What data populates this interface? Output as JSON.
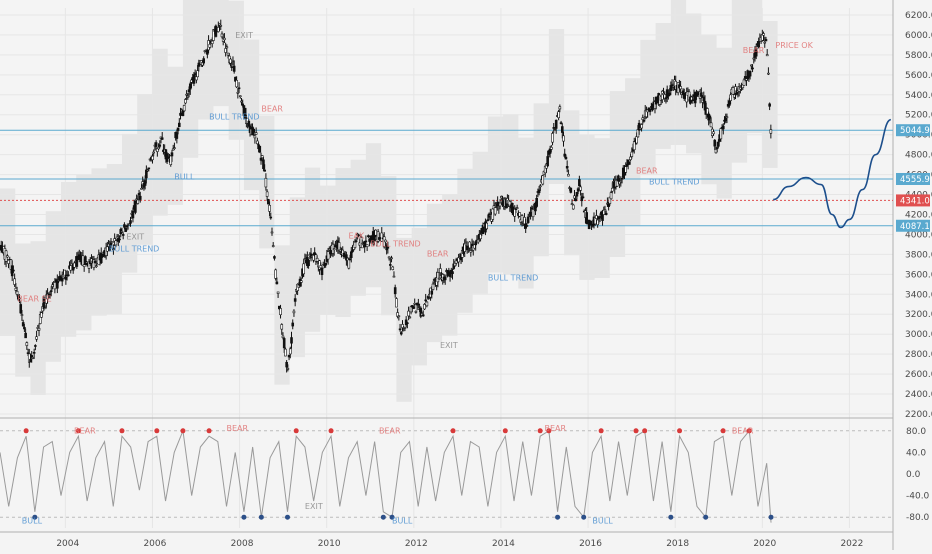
{
  "chart_data": [
    {
      "type": "candlestick",
      "price_axis": {
        "ticks": [
          "2200.0",
          "2400.0",
          "2600.0",
          "2800.0",
          "3000.0",
          "3200.0",
          "3400.0",
          "3600.0",
          "3800.0",
          "4000.0",
          "4200.0",
          "4400.0",
          "4600.0",
          "4800.0",
          "5000.0",
          "5200.0",
          "5400.0",
          "5600.0",
          "5800.0",
          "6000.0",
          "6200.0"
        ],
        "ylim": [
          2180,
          6270
        ]
      },
      "x_axis": {
        "ticks": [
          "2004",
          "2006",
          "2008",
          "2010",
          "2012",
          "2014",
          "2016",
          "2018",
          "2020",
          "2022"
        ],
        "xlim": [
          2002.5,
          2023.0
        ]
      },
      "price_lines": [
        {
          "value": 5044.9,
          "label": "5044.9",
          "color": "#5aa9cf"
        },
        {
          "value": 4555.9,
          "label": "4555.9",
          "color": "#5aa9cf"
        },
        {
          "value": 4341.0,
          "label": "4341.0",
          "color": "#e05050"
        },
        {
          "value": 4087.1,
          "label": "4087.1",
          "color": "#5aa9cf"
        }
      ],
      "series": [
        {
          "name": "price",
          "x": [
            2002.5,
            2002.75,
            2003.0,
            2003.2,
            2003.5,
            2003.8,
            2004.0,
            2004.3,
            2004.6,
            2004.9,
            2005.2,
            2005.5,
            2005.8,
            2006.0,
            2006.2,
            2006.4,
            2006.6,
            2006.8,
            2007.0,
            2007.2,
            2007.4,
            2007.55,
            2007.7,
            2007.85,
            2008.0,
            2008.2,
            2008.4,
            2008.55,
            2008.7,
            2008.85,
            2009.0,
            2009.1,
            2009.3,
            2009.5,
            2009.7,
            2009.9,
            2010.1,
            2010.3,
            2010.5,
            2010.7,
            2010.9,
            2011.1,
            2011.3,
            2011.5,
            2011.6,
            2011.7,
            2011.85,
            2012.0,
            2012.2,
            2012.4,
            2012.6,
            2012.8,
            2013.0,
            2013.2,
            2013.4,
            2013.6,
            2013.8,
            2014.0,
            2014.2,
            2014.4,
            2014.6,
            2014.8,
            2015.0,
            2015.2,
            2015.35,
            2015.5,
            2015.65,
            2015.8,
            2016.0,
            2016.2,
            2016.4,
            2016.6,
            2016.8,
            2017.0,
            2017.2,
            2017.4,
            2017.6,
            2017.8,
            2018.0,
            2018.2,
            2018.4,
            2018.6,
            2018.8,
            2018.95,
            2019.1,
            2019.3,
            2019.5,
            2019.7,
            2019.9,
            2020.0,
            2020.1,
            2020.15,
            2020.2
          ],
          "y": [
            3900,
            3700,
            3200,
            2700,
            3300,
            3500,
            3600,
            3750,
            3700,
            3800,
            3950,
            4150,
            4500,
            4800,
            4950,
            4700,
            5100,
            5400,
            5600,
            5800,
            6000,
            6100,
            5850,
            5700,
            5400,
            5100,
            4950,
            4700,
            4200,
            3500,
            3000,
            2600,
            3400,
            3700,
            3800,
            3650,
            3850,
            3900,
            3700,
            3950,
            3900,
            4000,
            3950,
            3700,
            3300,
            3050,
            3150,
            3300,
            3200,
            3450,
            3600,
            3600,
            3700,
            3900,
            3850,
            4050,
            4200,
            4350,
            4300,
            4200,
            4100,
            4300,
            4600,
            5000,
            5250,
            4700,
            4300,
            4500,
            4100,
            4150,
            4200,
            4500,
            4600,
            4800,
            5100,
            5250,
            5350,
            5400,
            5500,
            5400,
            5350,
            5400,
            5150,
            4850,
            5100,
            5400,
            5500,
            5600,
            5900,
            6000,
            5900,
            5500,
            5000
          ]
        }
      ],
      "projection": {
        "x": [
          2020.25,
          2020.6,
          2021.0,
          2021.35,
          2021.6,
          2021.8,
          2022.0,
          2022.3,
          2022.6,
          2022.95
        ],
        "y": [
          4350,
          4480,
          4570,
          4500,
          4200,
          4070,
          4150,
          4450,
          4800,
          5150
        ]
      },
      "labels": [
        {
          "text": "BULL TREND",
          "x": 2007.3,
          "y": 5150,
          "color": "#4a90d0"
        },
        {
          "text": "BULL TREND",
          "x": 2005.0,
          "y": 3830,
          "color": "#4a90d0"
        },
        {
          "text": "BULL TREND",
          "x": 2011.0,
          "y": 3880,
          "color": "#e07070"
        },
        {
          "text": "BULL TREND",
          "x": 2013.7,
          "y": 3540,
          "color": "#4a90d0"
        },
        {
          "text": "BULL TREND",
          "x": 2017.4,
          "y": 4500,
          "color": "#4a90d0"
        },
        {
          "text": "BULL",
          "x": 2006.5,
          "y": 4550,
          "color": "#4a90d0"
        },
        {
          "text": "BEAR",
          "x": 2008.5,
          "y": 5230,
          "color": "#e07070"
        },
        {
          "text": "BEAR",
          "x": 2012.3,
          "y": 3780,
          "color": "#e07070"
        },
        {
          "text": "BEAR",
          "x": 2017.1,
          "y": 4610,
          "color": "#e07070"
        },
        {
          "text": "BEAR",
          "x": 2019.55,
          "y": 5820,
          "color": "#e07070"
        },
        {
          "text": "BEAR SE",
          "x": 2002.9,
          "y": 3330,
          "color": "#e07070"
        },
        {
          "text": "EAK",
          "x": 2010.5,
          "y": 3960,
          "color": "#e07070"
        },
        {
          "text": "PRICE OK",
          "x": 2020.3,
          "y": 5870,
          "color": "#e07070"
        },
        {
          "text": "EXIT",
          "x": 2007.9,
          "y": 5970,
          "color": "#888888"
        },
        {
          "text": "EXIT",
          "x": 2012.6,
          "y": 2860,
          "color": "#888888"
        },
        {
          "text": "EXIT",
          "x": 2005.4,
          "y": 3950,
          "color": "#888888"
        }
      ]
    },
    {
      "type": "line",
      "oscillator_axis": {
        "ticks": [
          "80.0",
          "40.0",
          "0.0",
          "-40.0",
          "-80.0"
        ],
        "ylim": [
          -100,
          100
        ]
      },
      "series": [
        {
          "name": "oscillator",
          "x": [
            2002.5,
            2002.7,
            2002.9,
            2003.1,
            2003.3,
            2003.5,
            2003.7,
            2003.9,
            2004.1,
            2004.3,
            2004.5,
            2004.7,
            2004.9,
            2005.1,
            2005.3,
            2005.5,
            2005.7,
            2005.9,
            2006.1,
            2006.3,
            2006.5,
            2006.7,
            2006.9,
            2007.1,
            2007.3,
            2007.5,
            2007.7,
            2007.9,
            2008.1,
            2008.3,
            2008.5,
            2008.7,
            2008.9,
            2009.1,
            2009.3,
            2009.5,
            2009.7,
            2009.9,
            2010.1,
            2010.3,
            2010.5,
            2010.7,
            2010.9,
            2011.1,
            2011.3,
            2011.5,
            2011.7,
            2011.9,
            2012.1,
            2012.3,
            2012.5,
            2012.7,
            2012.9,
            2013.1,
            2013.3,
            2013.5,
            2013.7,
            2013.9,
            2014.1,
            2014.3,
            2014.5,
            2014.7,
            2014.9,
            2015.1,
            2015.3,
            2015.5,
            2015.7,
            2015.9,
            2016.1,
            2016.3,
            2016.5,
            2016.7,
            2016.9,
            2017.1,
            2017.3,
            2017.5,
            2017.7,
            2017.9,
            2018.1,
            2018.3,
            2018.5,
            2018.7,
            2018.9,
            2019.1,
            2019.3,
            2019.5,
            2019.7,
            2019.9,
            2020.1,
            2020.2
          ],
          "y": [
            40,
            -60,
            30,
            70,
            -70,
            50,
            60,
            -40,
            40,
            70,
            -50,
            30,
            60,
            -60,
            70,
            50,
            -30,
            60,
            70,
            -50,
            40,
            80,
            -40,
            50,
            70,
            60,
            -60,
            40,
            -70,
            50,
            -80,
            30,
            60,
            -70,
            70,
            50,
            -50,
            40,
            70,
            -60,
            30,
            60,
            -40,
            60,
            -70,
            -80,
            40,
            60,
            -60,
            50,
            -50,
            40,
            70,
            -40,
            60,
            50,
            -60,
            40,
            70,
            -50,
            60,
            -40,
            70,
            80,
            -70,
            50,
            -60,
            -80,
            40,
            70,
            -50,
            60,
            -40,
            70,
            80,
            -50,
            60,
            -70,
            70,
            40,
            -60,
            -80,
            60,
            70,
            -40,
            60,
            80,
            -60,
            20,
            -90
          ]
        }
      ],
      "labels": [
        {
          "text": "BEAR",
          "x": 2004.2,
          "y": 75,
          "color": "#e07070"
        },
        {
          "text": "BEAR",
          "x": 2007.7,
          "y": 80,
          "color": "#e07070"
        },
        {
          "text": "BEAR",
          "x": 2011.2,
          "y": 75,
          "color": "#e07070"
        },
        {
          "text": "BEAR",
          "x": 2015.0,
          "y": 80,
          "color": "#e07070"
        },
        {
          "text": "BEAR",
          "x": 2019.3,
          "y": 75,
          "color": "#e07070"
        },
        {
          "text": "BULL",
          "x": 2011.5,
          "y": -92,
          "color": "#4a90d0"
        },
        {
          "text": "BULL",
          "x": 2016.1,
          "y": -92,
          "color": "#4a90d0"
        },
        {
          "text": "BULL",
          "x": 2003.0,
          "y": -92,
          "color": "#4a90d0"
        },
        {
          "text": "EXIT",
          "x": 2009.5,
          "y": -65,
          "color": "#888888"
        }
      ]
    }
  ],
  "colors": {
    "background": "#f4f4f4",
    "candle": "#111111",
    "bull": "#4a90d0",
    "bear": "#e07070",
    "projection": "#1d4f8c",
    "band": "#d9d9d9"
  }
}
